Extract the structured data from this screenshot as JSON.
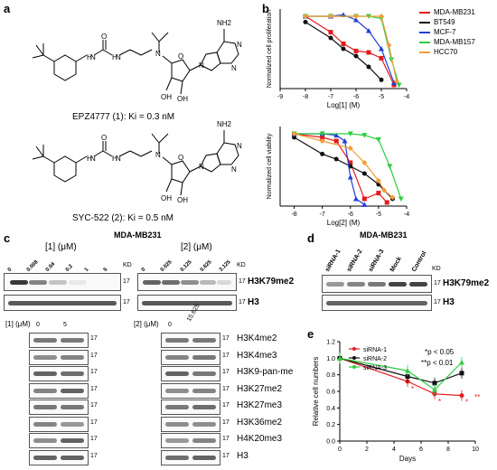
{
  "panel_a": {
    "label": "a",
    "compound1_caption": "EPZ4777 (1): Ki = 0.3 nM",
    "compound2_caption": "SYC-522 (2): Ki = 0.5 nM",
    "atoms": {
      "nh2": "NH2",
      "n": "N",
      "oh": "OH",
      "o": "O",
      "h": "H"
    }
  },
  "panel_b": {
    "label": "b",
    "legend": [
      {
        "name": "MDA-MB231",
        "color": "#e41a1c"
      },
      {
        "name": "BT549",
        "color": "#111111"
      },
      {
        "name": "MCF-7",
        "color": "#1f3fd6"
      },
      {
        "name": "MDA-MB157",
        "color": "#2ecc40"
      },
      {
        "name": "HCC70",
        "color": "#f39c3a"
      }
    ]
  },
  "chart_data": [
    {
      "type": "line",
      "ylabel": "Normalized cell proliferation",
      "xlabel": "Log[1] (M)",
      "xlim": [
        -9,
        -4
      ],
      "ylim": [
        0,
        1.1
      ],
      "xticks": [
        "-9",
        "-8",
        "-7",
        "-6",
        "-5",
        "-4"
      ],
      "series": [
        {
          "name": "MDA-MB231",
          "color": "#e41a1c",
          "x": [
            -8,
            -7,
            -6.5,
            -6,
            -5.5,
            -5,
            -4.5
          ],
          "y": [
            1.0,
            0.78,
            0.62,
            0.52,
            0.5,
            0.42,
            0.05
          ]
        },
        {
          "name": "BT549",
          "color": "#111111",
          "x": [
            -8,
            -7,
            -6.5,
            -6,
            -5.5,
            -5
          ],
          "y": [
            0.92,
            0.7,
            0.55,
            0.45,
            0.3,
            0.12
          ]
        },
        {
          "name": "MCF-7",
          "color": "#1f3fd6",
          "x": [
            -8,
            -7,
            -6.5,
            -6,
            -5.5,
            -5,
            -4.5
          ],
          "y": [
            1.0,
            1.0,
            1.02,
            0.95,
            0.8,
            0.55,
            0.08
          ]
        },
        {
          "name": "MDA-MB157",
          "color": "#2ecc40",
          "x": [
            -8,
            -7,
            -6,
            -5.5,
            -5,
            -4.6,
            -4.3
          ],
          "y": [
            1.0,
            1.0,
            1.0,
            1.0,
            0.97,
            0.4,
            0.05
          ]
        },
        {
          "name": "HCC70",
          "color": "#f39c3a",
          "x": [
            -8,
            -7,
            -6,
            -5,
            -4.7,
            -4.4
          ],
          "y": [
            1.0,
            1.0,
            1.0,
            1.0,
            0.6,
            0.1
          ]
        }
      ]
    },
    {
      "type": "line",
      "ylabel": "Normalized cell viability",
      "xlabel": "Log[2] (M)",
      "xlim": [
        -8.5,
        -4
      ],
      "ylim": [
        0,
        1.1
      ],
      "xticks": [
        "-8",
        "-7",
        "-6",
        "-5",
        "-4"
      ],
      "series": [
        {
          "name": "MDA-MB231",
          "color": "#e41a1c",
          "x": [
            -8,
            -7,
            -6.5,
            -6,
            -5.5,
            -5,
            -4.7
          ],
          "y": [
            1.0,
            0.95,
            0.9,
            0.6,
            0.1,
            0.18,
            0.05
          ]
        },
        {
          "name": "BT549",
          "color": "#111111",
          "x": [
            -8,
            -7,
            -6.5,
            -6,
            -5.5,
            -5,
            -4.5
          ],
          "y": [
            0.95,
            0.72,
            0.65,
            0.55,
            0.45,
            0.3,
            0.1
          ]
        },
        {
          "name": "MCF-7",
          "color": "#1f3fd6",
          "x": [
            -8,
            -7,
            -6.5,
            -6.2,
            -6,
            -5.8,
            -5.5
          ],
          "y": [
            1.0,
            1.0,
            0.98,
            0.9,
            0.4,
            0.1,
            0.02
          ]
        },
        {
          "name": "MDA-MB157",
          "color": "#2ecc40",
          "x": [
            -8,
            -7,
            -6,
            -5.5,
            -5,
            -4.6,
            -4.2
          ],
          "y": [
            1.0,
            1.0,
            1.0,
            0.98,
            0.92,
            0.55,
            0.1
          ]
        },
        {
          "name": "HCC70",
          "color": "#f39c3a",
          "x": [
            -8,
            -7,
            -6,
            -5.5,
            -5,
            -4.8,
            -4.5
          ],
          "y": [
            1.0,
            0.9,
            0.8,
            0.6,
            0.35,
            0.22,
            0.12
          ]
        }
      ]
    },
    {
      "type": "line",
      "ylabel": "Relative cell numbers",
      "xlabel": "Days",
      "xlim": [
        0,
        10
      ],
      "ylim": [
        0,
        1.2
      ],
      "xticks": [
        "0",
        "2",
        "4",
        "6",
        "8",
        "10"
      ],
      "yticks": [
        "0.0",
        "0.2",
        "0.4",
        "0.6",
        "0.8",
        "1.0",
        "1.2"
      ],
      "series": [
        {
          "name": "siRNA-1",
          "color": "#e41a1c",
          "x": [
            0,
            5,
            7,
            9
          ],
          "y": [
            1.0,
            0.72,
            0.57,
            0.55
          ]
        },
        {
          "name": "siRNA-2",
          "color": "#111111",
          "x": [
            0,
            5,
            7,
            9
          ],
          "y": [
            1.0,
            0.78,
            0.7,
            0.82
          ]
        },
        {
          "name": "siRNA-3",
          "color": "#2ecc40",
          "x": [
            0,
            5,
            7,
            9
          ],
          "y": [
            1.0,
            0.85,
            0.62,
            0.95
          ]
        }
      ]
    }
  ],
  "panel_c": {
    "label": "c",
    "cell_line": "MDA-MB231",
    "blot1_title": "[1] (μM)",
    "blot1_lanes": [
      "0",
      "0.008",
      "0.04",
      "0.2",
      "1",
      "5"
    ],
    "blot2_title": "[2] (μM)",
    "blot2_lanes": [
      "0",
      "0.025",
      "0.125",
      "0.625",
      "3.125"
    ],
    "kd": "KD",
    "mw": "17",
    "marker_h3k79": "H3K79me2",
    "marker_h3": "H3",
    "blot3_title": "[1] (μM)",
    "blot3_lanes": [
      "0",
      "5"
    ],
    "blot4_title": "[2] (μM)",
    "blot4_lanes": [
      "0",
      "15.625"
    ],
    "histone_marks": [
      "H3K4me2",
      "H3K4me3",
      "H3K9-pan-me",
      "H3K27me2",
      "H3K27me3",
      "H3K36me2",
      "H4K20me3",
      "H3"
    ]
  },
  "panel_d": {
    "label": "d",
    "cell_line": "MDA-MB231",
    "lanes": [
      "siRNA-1",
      "siRNA-2",
      "siRNA-3",
      "Mock",
      "Control"
    ],
    "kd": "KD",
    "mw": "17",
    "marker_h3k79": "H3K79me2",
    "marker_h3": "H3"
  },
  "panel_e": {
    "label": "e",
    "legend": [
      {
        "name": "siRNA-1",
        "color": "#e41a1c"
      },
      {
        "name": "siRNA-2",
        "color": "#111111"
      },
      {
        "name": "siRNA-3",
        "color": "#2ecc40"
      }
    ],
    "sig1": "*p < 0.05",
    "sig2": "**p < 0.01",
    "star1": "*",
    "star2": "**"
  }
}
